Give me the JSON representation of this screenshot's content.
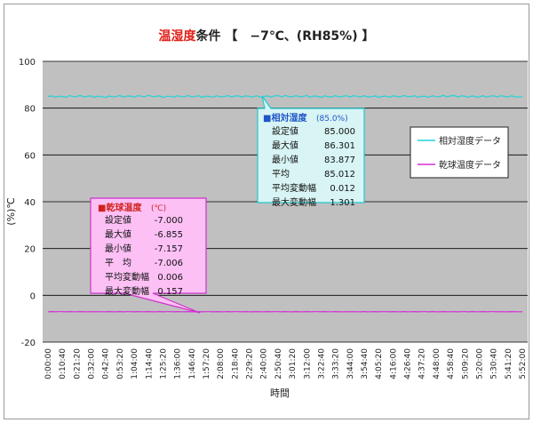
{
  "title": {
    "part1": "温湿度",
    "part2": "条件 【　−7℃、(RH85%) 】"
  },
  "chart_data": {
    "type": "line",
    "xlabel": "時間",
    "ylabel": "(%)℃",
    "ylim": [
      -20,
      100
    ],
    "yticks": [
      -20,
      0,
      20,
      40,
      60,
      80,
      100
    ],
    "grid": true,
    "categories": [
      "0:00:00",
      "0:10:40",
      "0:21:20",
      "0:32:00",
      "0:42:40",
      "0:53:20",
      "1:04:00",
      "1:14:40",
      "1:25:20",
      "1:36:00",
      "1:46:40",
      "1:57:20",
      "2:08:00",
      "2:18:40",
      "2:29:20",
      "2:40:00",
      "2:50:40",
      "3:01:20",
      "3:12:00",
      "3:22:40",
      "3:33:20",
      "3:44:00",
      "3:54:40",
      "4:05:20",
      "4:16:00",
      "4:26:40",
      "4:37:20",
      "4:48:00",
      "4:58:40",
      "5:09:20",
      "5:20:00",
      "5:30:40",
      "5:41:20",
      "5:52:00"
    ],
    "series": [
      {
        "name": "相対湿度データ",
        "color": "#22d3d8",
        "values": [
          85.0,
          84.9,
          85.1,
          85.0,
          84.8,
          85.1,
          85.0,
          85.2,
          84.9,
          85.0,
          85.1,
          84.9,
          85.0,
          85.1,
          85.0,
          84.9,
          85.2,
          85.0,
          85.1,
          84.9,
          85.0,
          85.1,
          85.0,
          84.9,
          85.0,
          85.1,
          84.9,
          85.0,
          85.2,
          85.0,
          84.9,
          85.1,
          85.0,
          84.9
        ]
      },
      {
        "name": "乾球温度データ",
        "color": "#d62fd6",
        "values": [
          -7.0,
          -7.0,
          -7.0,
          -7.01,
          -7.0,
          -7.0,
          -7.0,
          -7.01,
          -7.0,
          -7.0,
          -7.0,
          -7.0,
          -7.01,
          -7.0,
          -7.0,
          -7.0,
          -7.0,
          -7.01,
          -7.0,
          -7.0,
          -7.0,
          -7.0,
          -7.01,
          -7.0,
          -7.0,
          -7.0,
          -7.0,
          -7.0,
          -7.01,
          -7.0,
          -7.0,
          -7.0,
          -7.0,
          -7.0
        ]
      }
    ],
    "annotations": {
      "humidity": {
        "title": "■相対湿度",
        "subtitle": "(85.0%)",
        "rows": [
          {
            "label": "設定値",
            "value": "85.000"
          },
          {
            "label": "最大値",
            "value": "86.301"
          },
          {
            "label": "最小値",
            "value": "83.877"
          },
          {
            "label": "平均",
            "value": "85.012"
          },
          {
            "label": "平均変動幅",
            "value": "0.012"
          },
          {
            "label": "最大変動幅",
            "value": "1.301"
          }
        ]
      },
      "temperature": {
        "title": "■乾球温度",
        "subtitle": "(℃)",
        "rows": [
          {
            "label": "設定値",
            "value": "-7.000"
          },
          {
            "label": "最大値",
            "value": "-6.855"
          },
          {
            "label": "最小値",
            "value": "-7.157"
          },
          {
            "label": "平　均",
            "value": "-7.006"
          },
          {
            "label": "平均変動幅",
            "value": "0.006"
          },
          {
            "label": "最大変動幅",
            "value": "0.157"
          }
        ]
      }
    },
    "colors": {
      "plot_background": "#c0c0c0",
      "humidity_box_bg": "#d8f4f4",
      "temperature_box_bg": "#fdc0f5",
      "title_red": "#e0201a"
    }
  }
}
